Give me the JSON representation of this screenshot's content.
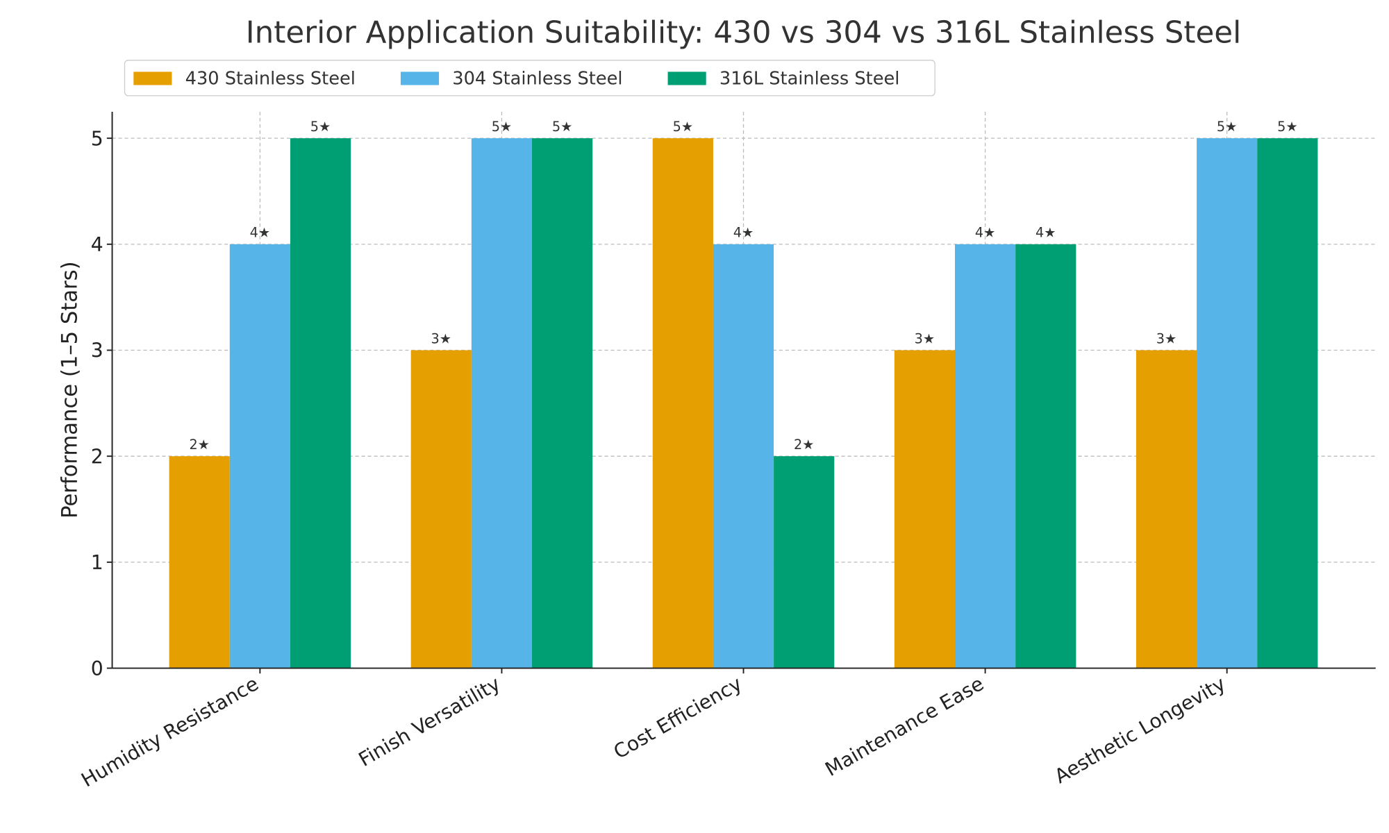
{
  "chart_data": {
    "type": "bar",
    "title": "Interior Application Suitability: 430 vs 304 vs 316L Stainless Steel",
    "xlabel": "",
    "ylabel": "Performance (1–5 Stars)",
    "ylim": [
      0,
      5.25
    ],
    "yticks": [
      "0",
      "1",
      "2",
      "3",
      "4",
      "5"
    ],
    "grid": true,
    "legend_position": "top-left",
    "categories": [
      "Humidity Resistance",
      "Finish Versatility",
      "Cost Efficiency",
      "Maintenance Ease",
      "Aesthetic Longevity"
    ],
    "series": [
      {
        "name": "430 Stainless Steel",
        "color": "#E69F00",
        "values": [
          2,
          3,
          5,
          3,
          3
        ]
      },
      {
        "name": "304 Stainless Steel",
        "color": "#56B4E9",
        "values": [
          4,
          5,
          4,
          4,
          5
        ]
      },
      {
        "name": "316L Stainless Steel",
        "color": "#009E73",
        "values": [
          5,
          5,
          2,
          4,
          5
        ]
      }
    ],
    "data_label_suffix": "★"
  }
}
